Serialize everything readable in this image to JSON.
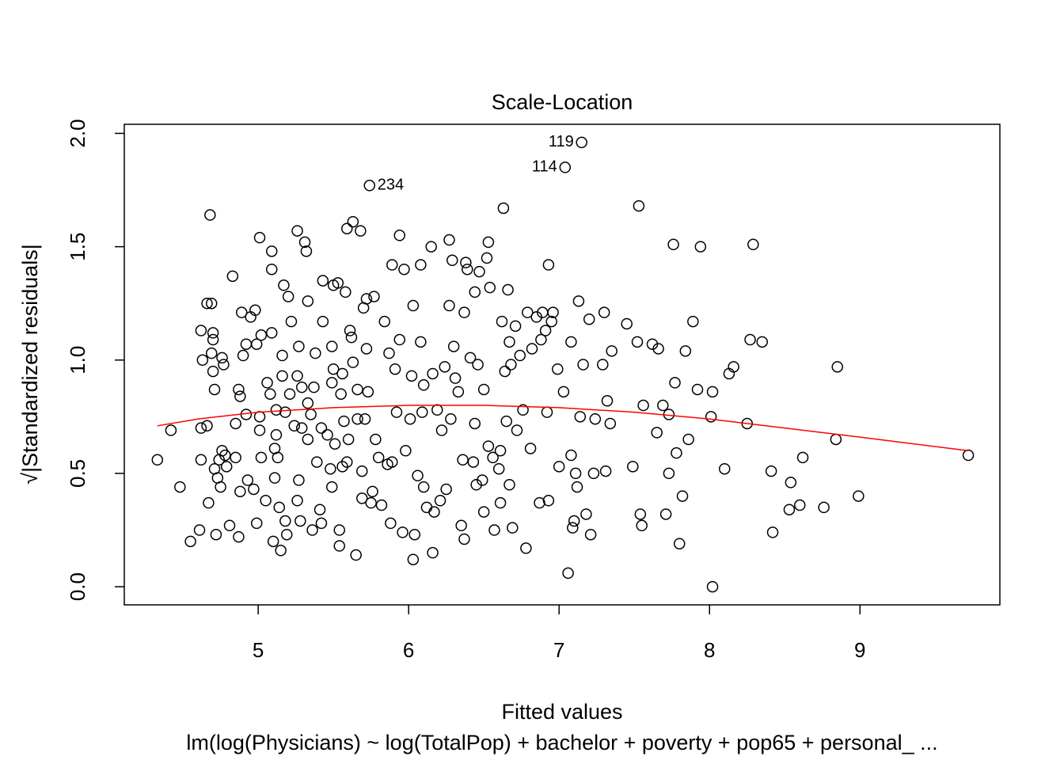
{
  "chart_data": {
    "type": "scatter",
    "title": "Scale-Location",
    "xlabel": "Fitted values",
    "ylabel": "√|Standardized residuals|",
    "subtitle": "lm(log(Physicians) ~ log(TotalPop) + bachelor + poverty + pop65 + personal_ ...",
    "xlim": [
      4.11,
      9.93
    ],
    "ylim": [
      -0.08,
      2.04
    ],
    "xticks": [
      5,
      6,
      7,
      8,
      9
    ],
    "yticks": [
      {
        "value": 0,
        "label": "0.0"
      },
      {
        "value": 0.5,
        "label": "0.5"
      },
      {
        "value": 1,
        "label": "1.0"
      },
      {
        "value": 1.5,
        "label": "1.5"
      },
      {
        "value": 2,
        "label": "2.0"
      }
    ],
    "color": "#000000",
    "x": [
      4.33,
      4.42,
      4.48,
      4.55,
      4.62,
      4.62,
      4.61,
      4.62,
      4.63,
      4.66,
      4.68,
      4.66,
      4.69,
      4.67,
      4.69,
      4.7,
      4.7,
      4.7,
      4.71,
      4.71,
      4.72,
      4.73,
      4.74,
      4.75,
      4.76,
      4.76,
      4.77,
      4.78,
      4.79,
      4.81,
      4.83,
      4.85,
      4.85,
      4.87,
      4.87,
      4.88,
      4.88,
      4.89,
      4.9,
      4.92,
      4.92,
      4.93,
      4.95,
      4.97,
      4.98,
      4.99,
      4.99,
      5.01,
      5.01,
      5.01,
      5.02,
      5.02,
      5.05,
      5.06,
      5.08,
      5.09,
      5.09,
      5.09,
      5.1,
      5.11,
      5.11,
      5.12,
      5.12,
      5.13,
      5.14,
      5.15,
      5.16,
      5.16,
      5.17,
      5.18,
      5.18,
      5.19,
      5.2,
      5.21,
      5.22,
      5.24,
      5.26,
      5.26,
      5.26,
      5.27,
      5.27,
      5.28,
      5.29,
      5.29,
      5.31,
      5.32,
      5.33,
      5.33,
      5.33,
      5.35,
      5.36,
      5.37,
      5.38,
      5.39,
      5.41,
      5.42,
      5.42,
      5.43,
      5.43,
      5.46,
      5.48,
      5.49,
      5.49,
      5.49,
      5.5,
      5.5,
      5.51,
      5.53,
      5.54,
      5.54,
      5.55,
      5.56,
      5.56,
      5.57,
      5.58,
      5.59,
      5.59,
      5.6,
      5.61,
      5.62,
      5.63,
      5.63,
      5.65,
      5.66,
      5.66,
      5.68,
      5.69,
      5.69,
      5.7,
      5.71,
      5.72,
      5.72,
      5.73,
      5.74,
      5.75,
      5.76,
      5.77,
      5.78,
      5.8,
      5.82,
      5.84,
      5.86,
      5.87,
      5.88,
      5.89,
      5.89,
      5.91,
      5.92,
      5.94,
      5.94,
      5.96,
      5.97,
      5.98,
      6.01,
      6.02,
      6.03,
      6.03,
      6.04,
      6.06,
      6.08,
      6.08,
      6.09,
      6.1,
      6.1,
      6.12,
      6.15,
      6.16,
      6.16,
      6.17,
      6.19,
      6.21,
      6.22,
      6.24,
      6.25,
      6.27,
      6.27,
      6.28,
      6.29,
      6.3,
      6.31,
      6.33,
      6.35,
      6.36,
      6.37,
      6.37,
      6.38,
      6.39,
      6.41,
      6.43,
      6.44,
      6.44,
      6.45,
      6.46,
      6.47,
      6.49,
      6.5,
      6.5,
      6.52,
      6.53,
      6.53,
      6.54,
      6.56,
      6.57,
      6.6,
      6.61,
      6.61,
      6.62,
      6.63,
      6.64,
      6.65,
      6.66,
      6.67,
      6.67,
      6.68,
      6.69,
      6.71,
      6.72,
      6.74,
      6.76,
      6.78,
      6.79,
      6.81,
      6.82,
      6.85,
      6.87,
      6.88,
      6.89,
      6.91,
      6.92,
      6.93,
      6.93,
      6.95,
      6.96,
      6.99,
      7.0,
      7.03,
      7.04,
      7.06,
      7.08,
      7.08,
      7.09,
      7.1,
      7.11,
      7.12,
      7.13,
      7.14,
      7.15,
      7.16,
      7.18,
      7.2,
      7.21,
      7.23,
      7.24,
      7.29,
      7.3,
      7.31,
      7.32,
      7.34,
      7.35,
      7.45,
      7.49,
      7.52,
      7.53,
      7.54,
      7.55,
      7.56,
      7.62,
      7.65,
      7.66,
      7.69,
      7.71,
      7.73,
      7.73,
      7.76,
      7.77,
      7.78,
      7.8,
      7.82,
      7.84,
      7.86,
      7.89,
      7.92,
      7.94,
      8.01,
      8.02,
      8.02,
      8.1,
      8.13,
      8.16,
      8.25,
      8.27,
      8.29,
      8.35,
      8.41,
      8.42,
      8.53,
      8.54,
      8.6,
      8.62,
      8.76,
      8.85,
      8.84,
      8.99,
      9.72
    ],
    "values": [
      0.56,
      0.69,
      0.44,
      0.2,
      1.13,
      0.56,
      0.25,
      0.7,
      1.0,
      0.71,
      1.64,
      1.25,
      1.25,
      0.37,
      1.03,
      1.12,
      1.09,
      0.95,
      0.87,
      0.52,
      0.23,
      0.48,
      0.56,
      0.44,
      0.6,
      1.01,
      0.98,
      0.58,
      0.53,
      0.27,
      1.37,
      0.72,
      0.57,
      0.87,
      0.22,
      0.84,
      0.42,
      1.21,
      1.02,
      0.76,
      1.07,
      0.47,
      1.19,
      0.43,
      1.22,
      0.28,
      1.07,
      0.75,
      1.54,
      0.69,
      0.57,
      1.11,
      0.38,
      0.9,
      0.85,
      1.4,
      1.48,
      1.12,
      0.2,
      0.48,
      0.61,
      0.78,
      0.67,
      0.57,
      0.35,
      0.16,
      0.93,
      1.02,
      1.33,
      0.77,
      0.29,
      0.23,
      1.28,
      0.85,
      1.17,
      0.71,
      1.57,
      0.93,
      0.38,
      1.06,
      0.47,
      0.29,
      0.88,
      0.7,
      1.52,
      1.48,
      1.26,
      0.81,
      0.65,
      0.76,
      0.25,
      0.88,
      1.03,
      0.55,
      0.34,
      0.7,
      0.28,
      1.35,
      1.17,
      0.67,
      0.52,
      1.06,
      0.9,
      0.44,
      1.33,
      0.96,
      0.63,
      1.34,
      0.25,
      0.18,
      0.85,
      0.53,
      0.94,
      0.73,
      1.3,
      1.58,
      0.55,
      0.65,
      1.13,
      1.1,
      0.99,
      1.61,
      0.14,
      0.87,
      0.74,
      1.57,
      0.39,
      0.51,
      1.23,
      0.74,
      1.05,
      1.27,
      0.86,
      1.77,
      0.37,
      0.42,
      1.28,
      0.65,
      0.57,
      0.36,
      1.17,
      0.54,
      1.03,
      0.28,
      0.55,
      1.42,
      0.96,
      0.77,
      1.55,
      1.09,
      0.24,
      1.4,
      0.6,
      0.74,
      0.93,
      1.24,
      0.12,
      0.23,
      0.49,
      1.42,
      1.08,
      0.77,
      0.89,
      0.44,
      0.35,
      1.5,
      0.94,
      0.15,
      0.33,
      0.78,
      0.38,
      0.69,
      0.97,
      0.43,
      1.53,
      1.24,
      0.74,
      1.44,
      1.06,
      0.92,
      0.86,
      0.27,
      0.56,
      1.21,
      0.21,
      1.43,
      1.4,
      1.01,
      0.55,
      1.3,
      0.72,
      0.45,
      0.98,
      1.39,
      0.47,
      0.33,
      0.87,
      1.45,
      1.52,
      0.62,
      1.32,
      0.57,
      0.25,
      0.52,
      0.37,
      0.6,
      1.17,
      1.67,
      0.95,
      0.73,
      1.31,
      0.45,
      1.08,
      0.98,
      0.26,
      1.15,
      0.69,
      1.02,
      0.78,
      0.17,
      1.21,
      0.61,
      1.05,
      1.19,
      0.37,
      1.09,
      1.21,
      1.13,
      0.77,
      0.38,
      1.42,
      1.17,
      1.21,
      0.96,
      0.53,
      0.86,
      1.85,
      0.06,
      1.08,
      0.58,
      0.26,
      0.29,
      0.5,
      0.44,
      1.26,
      0.75,
      1.96,
      0.98,
      0.32,
      1.18,
      0.23,
      0.5,
      0.74,
      0.98,
      1.21,
      0.51,
      0.82,
      0.72,
      1.04,
      1.16,
      0.53,
      1.08,
      1.68,
      0.32,
      0.27,
      0.8,
      1.07,
      0.68,
      1.05,
      0.8,
      0.32,
      0.5,
      0.76,
      1.51,
      0.9,
      0.59,
      0.19,
      0.4,
      1.04,
      0.65,
      1.17,
      0.87,
      1.5,
      0.75,
      0.86,
      0.0,
      0.52,
      0.94,
      0.97,
      0.72,
      1.09,
      1.51,
      1.08,
      0.51,
      0.24,
      0.34,
      0.46,
      0.36,
      0.57,
      0.35,
      0.97,
      0.65,
      0.4,
      0.58
    ],
    "smooth": {
      "color": "#ff0000",
      "x": [
        4.33,
        4.6,
        5.0,
        5.5,
        6.0,
        6.5,
        7.0,
        7.5,
        8.0,
        8.5,
        9.0,
        9.72
      ],
      "values": [
        0.71,
        0.74,
        0.77,
        0.79,
        0.8,
        0.8,
        0.79,
        0.77,
        0.74,
        0.7,
        0.66,
        0.6
      ]
    },
    "annotations": [
      {
        "text": "234",
        "x": 5.74,
        "y": 1.77,
        "side": "right"
      },
      {
        "text": "114",
        "x": 7.04,
        "y": 1.85,
        "side": "left"
      },
      {
        "text": "119",
        "x": 7.15,
        "y": 1.96,
        "side": "left"
      }
    ]
  }
}
